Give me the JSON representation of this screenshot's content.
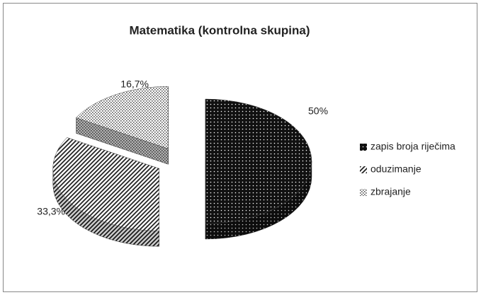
{
  "chart_data": {
    "type": "pie",
    "title": "Matematika (kontrolna skupina)",
    "categories": [
      "zapis broja riječima",
      "oduzimanje",
      "zbrajanje"
    ],
    "values": [
      50,
      33.3,
      16.7
    ],
    "value_labels": [
      "50%",
      "33,3%",
      "16,7%"
    ],
    "colors": [
      "#111111",
      "#222222",
      "#555555"
    ],
    "legend": "right"
  }
}
